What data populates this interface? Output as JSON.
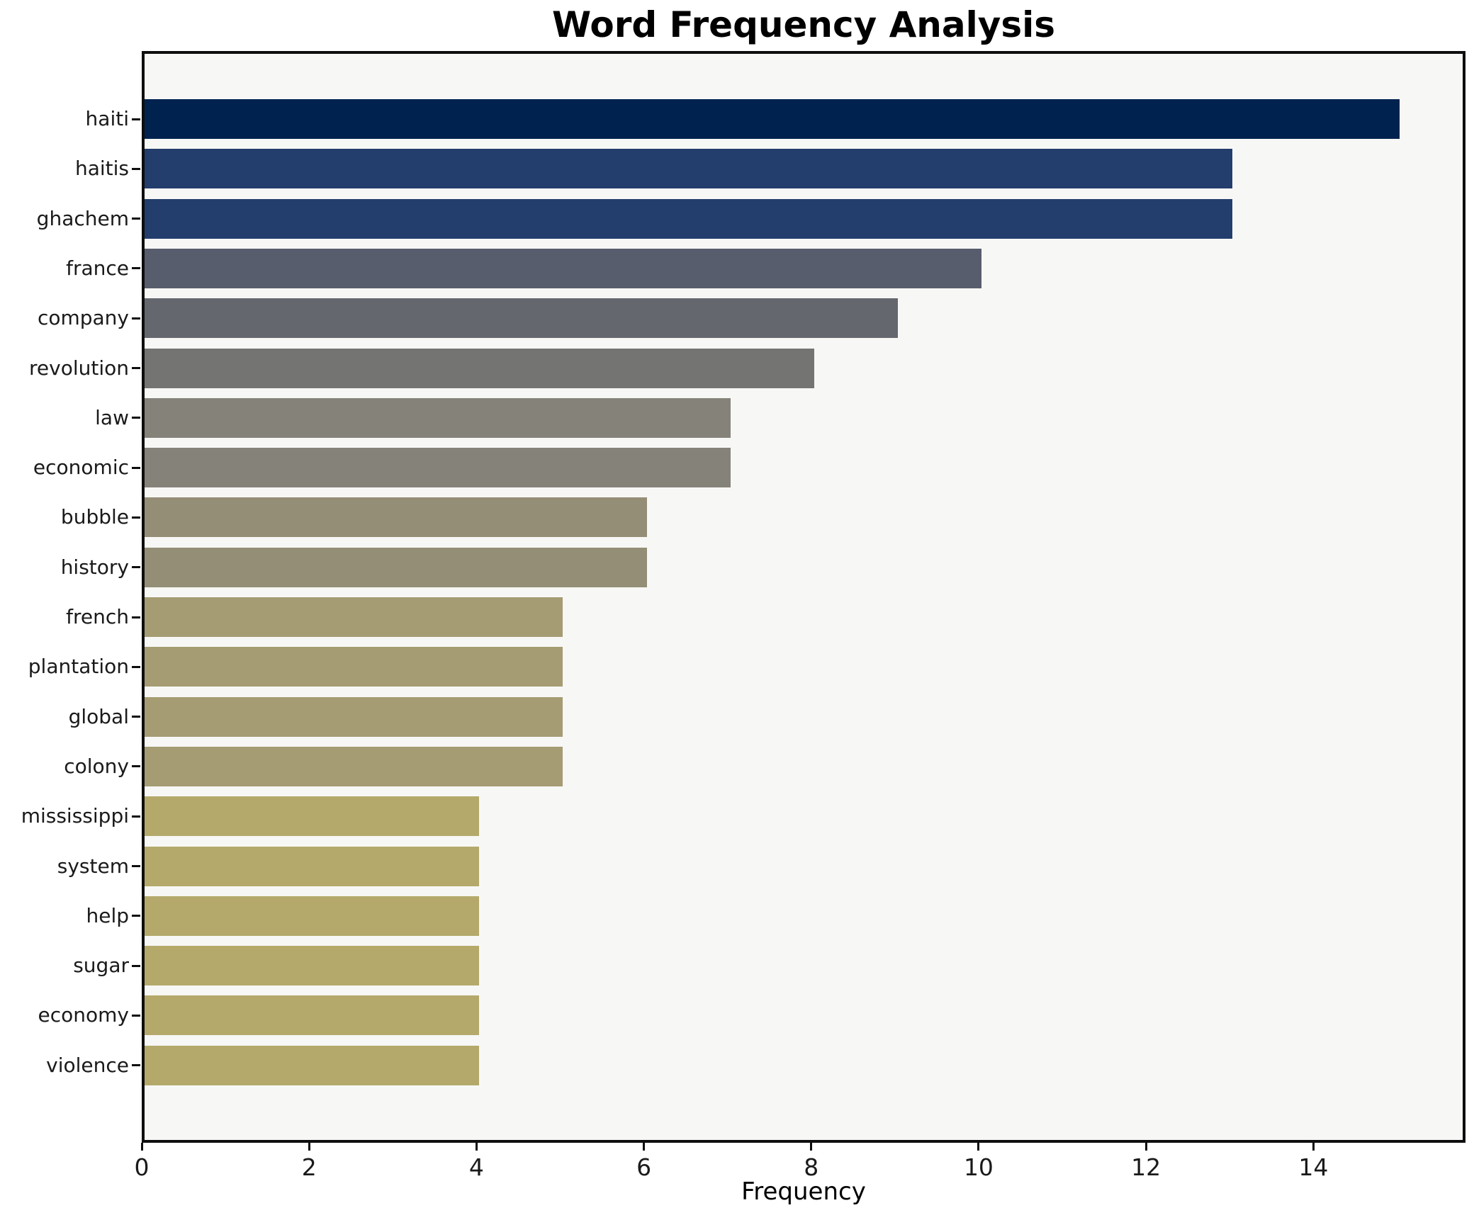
{
  "chart_data": {
    "type": "bar",
    "orientation": "horizontal",
    "title": "Word Frequency Analysis",
    "xlabel": "Frequency",
    "ylabel": "",
    "grid": false,
    "legend": null,
    "categories": [
      "haiti",
      "haitis",
      "ghachem",
      "france",
      "company",
      "revolution",
      "law",
      "economic",
      "bubble",
      "history",
      "french",
      "plantation",
      "global",
      "colony",
      "mississippi",
      "system",
      "help",
      "sugar",
      "economy",
      "violence"
    ],
    "values": [
      15,
      13,
      13,
      10,
      9,
      8,
      7,
      7,
      6,
      6,
      5,
      5,
      5,
      5,
      4,
      4,
      4,
      4,
      4,
      4
    ],
    "bar_colors": [
      "#00224E",
      "#233D6C",
      "#233D6C",
      "#575D6D",
      "#64676E",
      "#747472",
      "#858279",
      "#858279",
      "#958E77",
      "#958E77",
      "#A59C73",
      "#A59C73",
      "#A59C73",
      "#A59C73",
      "#B4A96A",
      "#B4A96A",
      "#B4A96A",
      "#B4A96A",
      "#B4A96A",
      "#B4A96A"
    ],
    "xlim": [
      0,
      15.75
    ],
    "xticks": [
      0,
      2,
      4,
      6,
      8,
      10,
      12,
      14
    ]
  },
  "colors": {
    "plot_background": "#f7f7f5",
    "figure_background": "#ffffff",
    "spine": "#0e0e0e",
    "text": "#1a1a1a",
    "colormap": "cividis"
  }
}
